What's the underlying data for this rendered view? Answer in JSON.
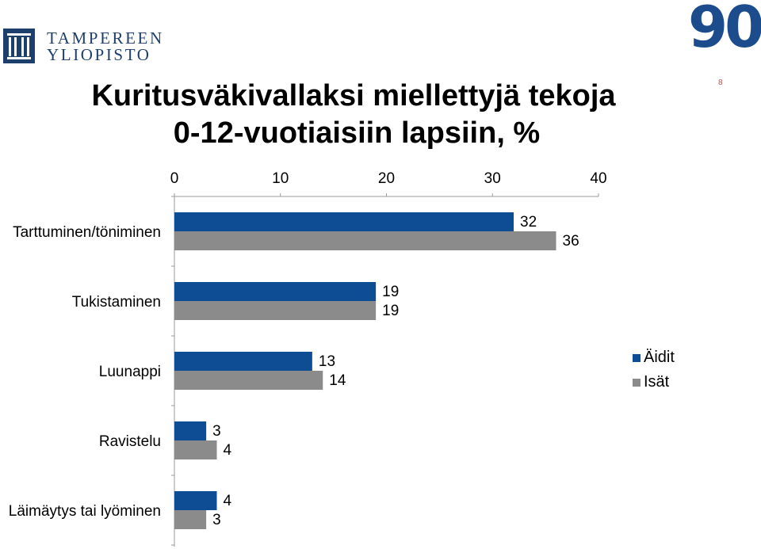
{
  "logo": {
    "line1": "TAMPEREEN",
    "line2": "YLIOPISTO"
  },
  "badge": "90",
  "slide_number": "8",
  "title": {
    "line1": "Kuritusväkivallaksi miellettyjä tekoja",
    "line2": "0-12-vuotiaisiin lapsiin, %"
  },
  "colors": {
    "brand": "#1d3f6e",
    "series1": "#0e4d93",
    "series2": "#8b8b8b"
  },
  "chart_data": {
    "type": "bar",
    "orientation": "horizontal",
    "categories": [
      "Tarttuminen/töniminen",
      "Tukistaminen",
      "Luunappi",
      "Ravistelu",
      "Läimäytys tai lyöminen"
    ],
    "series": [
      {
        "name": "Äidit",
        "values": [
          32,
          19,
          13,
          3,
          4
        ],
        "color": "#0e4d93"
      },
      {
        "name": "Isät",
        "values": [
          36,
          19,
          14,
          4,
          3
        ],
        "color": "#8b8b8b"
      }
    ],
    "xlim": [
      0,
      40
    ],
    "xticks": [
      "0",
      "10",
      "20",
      "30",
      "40"
    ],
    "xaxis_position": "top",
    "grid": false,
    "legend": "right"
  }
}
